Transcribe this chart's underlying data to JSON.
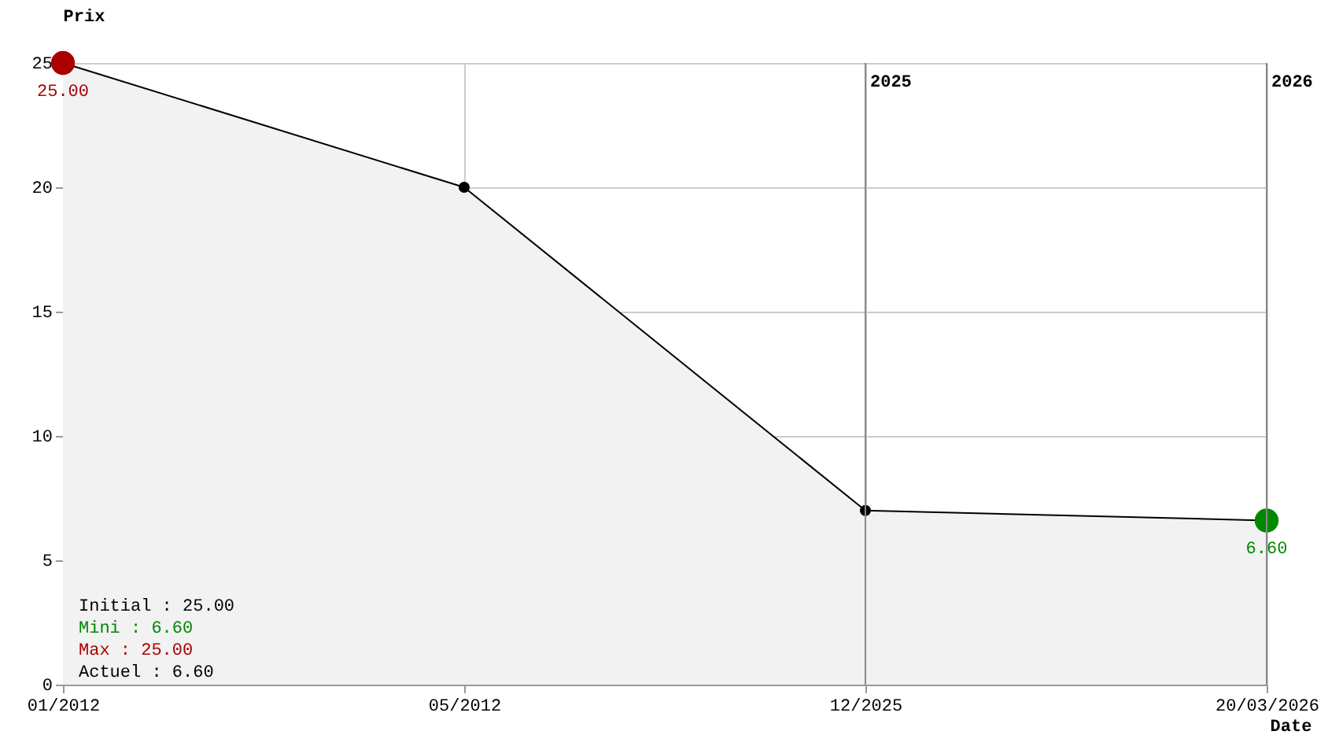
{
  "chart_data": {
    "type": "area",
    "ylabel": "Prix",
    "xlabel": "Date",
    "categories": [
      "01/2012",
      "05/2012",
      "12/2025",
      "20/03/2026"
    ],
    "series": [
      {
        "color": "#f2f2f2",
        "values": [
          25,
          20,
          7,
          6.6
        ]
      },
      {
        "type": "scatter",
        "color": "#aa0000",
        "x": [
          "01/2012"
        ],
        "values": [
          25
        ]
      },
      {
        "type": "scatter",
        "color": "#008800",
        "x": [
          "20/03/2026"
        ],
        "values": [
          6.6
        ]
      }
    ],
    "ylim": [
      0,
      25
    ],
    "yticks": [
      0,
      5,
      10,
      15,
      20,
      25
    ],
    "grid": true,
    "marker": "circle",
    "ref_lines": [
      {
        "axis": "x",
        "value": "12/2025",
        "label": "2025"
      },
      {
        "axis": "x",
        "value": "20/03/2026",
        "label": "2026"
      }
    ],
    "annotations": [
      {
        "text": "25.00",
        "x": "01/2012",
        "y": 25
      },
      {
        "text": "6.60",
        "x": "20/03/2026",
        "y": 6.6
      },
      "Initial : 25.00",
      "Mini : 6.60",
      "Max : 25.00",
      "Actuel : 6.60"
    ]
  }
}
